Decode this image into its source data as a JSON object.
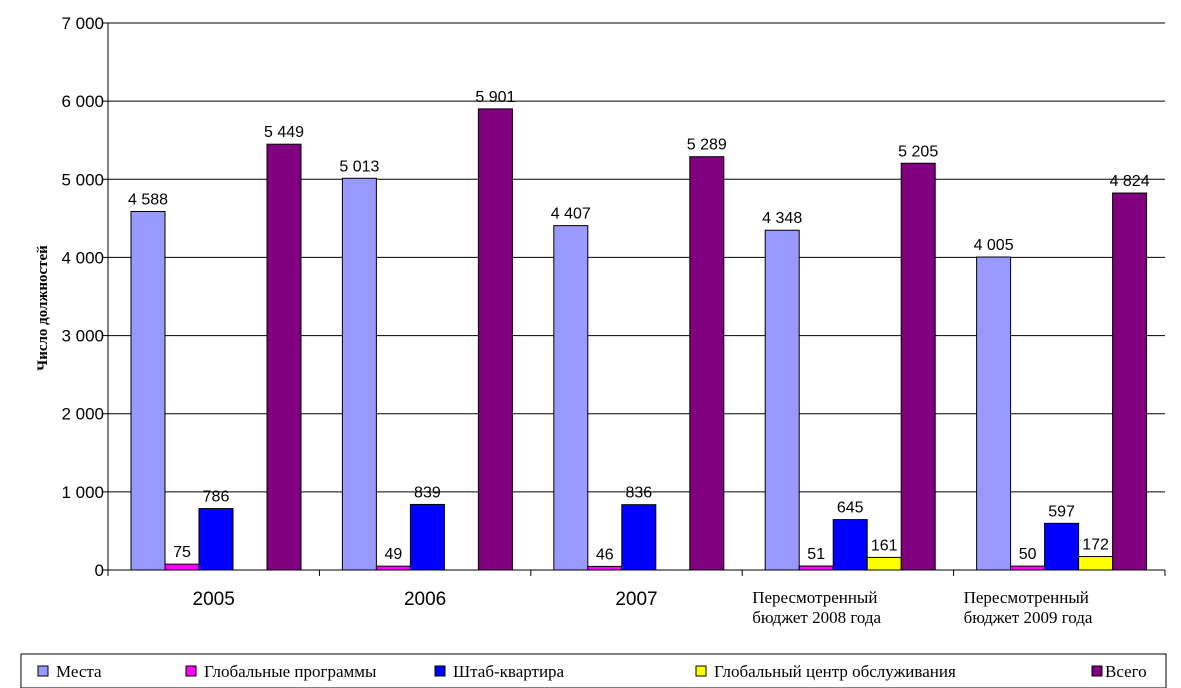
{
  "chart_data": {
    "type": "bar",
    "ylabel": "Число должностей",
    "ylim": [
      0,
      7000
    ],
    "yticks": [
      0,
      1000,
      2000,
      3000,
      4000,
      5000,
      6000,
      7000
    ],
    "ytick_labels": [
      "0",
      "1 000",
      "2 000",
      "3 000",
      "4 000",
      "5 000",
      "6 000",
      "7 000"
    ],
    "grid": true,
    "legend_position": "bottom",
    "categories": [
      [
        "2005"
      ],
      [
        "2006"
      ],
      [
        "2007"
      ],
      [
        "Пересмотренный",
        "бюджет 2008 года"
      ],
      [
        "Пересмотренный",
        "бюджет 2009 года"
      ]
    ],
    "series": [
      {
        "name": "Места",
        "color": "#9999ff",
        "values": [
          4588,
          5013,
          4407,
          4348,
          4005
        ],
        "labels": [
          "4 588",
          "5 013",
          "4 407",
          "4 348",
          "4 005"
        ]
      },
      {
        "name": "Глобальные программы",
        "color": "#ff00ff",
        "values": [
          75,
          49,
          46,
          51,
          50
        ],
        "labels": [
          "75",
          "49",
          "46",
          "51",
          "50"
        ]
      },
      {
        "name": "Штаб-квартира",
        "color": "#0000ff",
        "values": [
          786,
          839,
          836,
          645,
          597
        ],
        "labels": [
          "786",
          "839",
          "836",
          "645",
          "597"
        ]
      },
      {
        "name": "Глобальный центр обслуживания",
        "color": "#ffff00",
        "values": [
          null,
          null,
          null,
          161,
          172
        ],
        "labels": [
          "",
          "",
          "",
          "161",
          "172"
        ]
      },
      {
        "name": "Всего",
        "color": "#800080",
        "values": [
          5449,
          5901,
          5289,
          5205,
          4824
        ],
        "labels": [
          "5 449",
          "5 901",
          "5 289",
          "5 205",
          "4 824"
        ]
      }
    ]
  }
}
